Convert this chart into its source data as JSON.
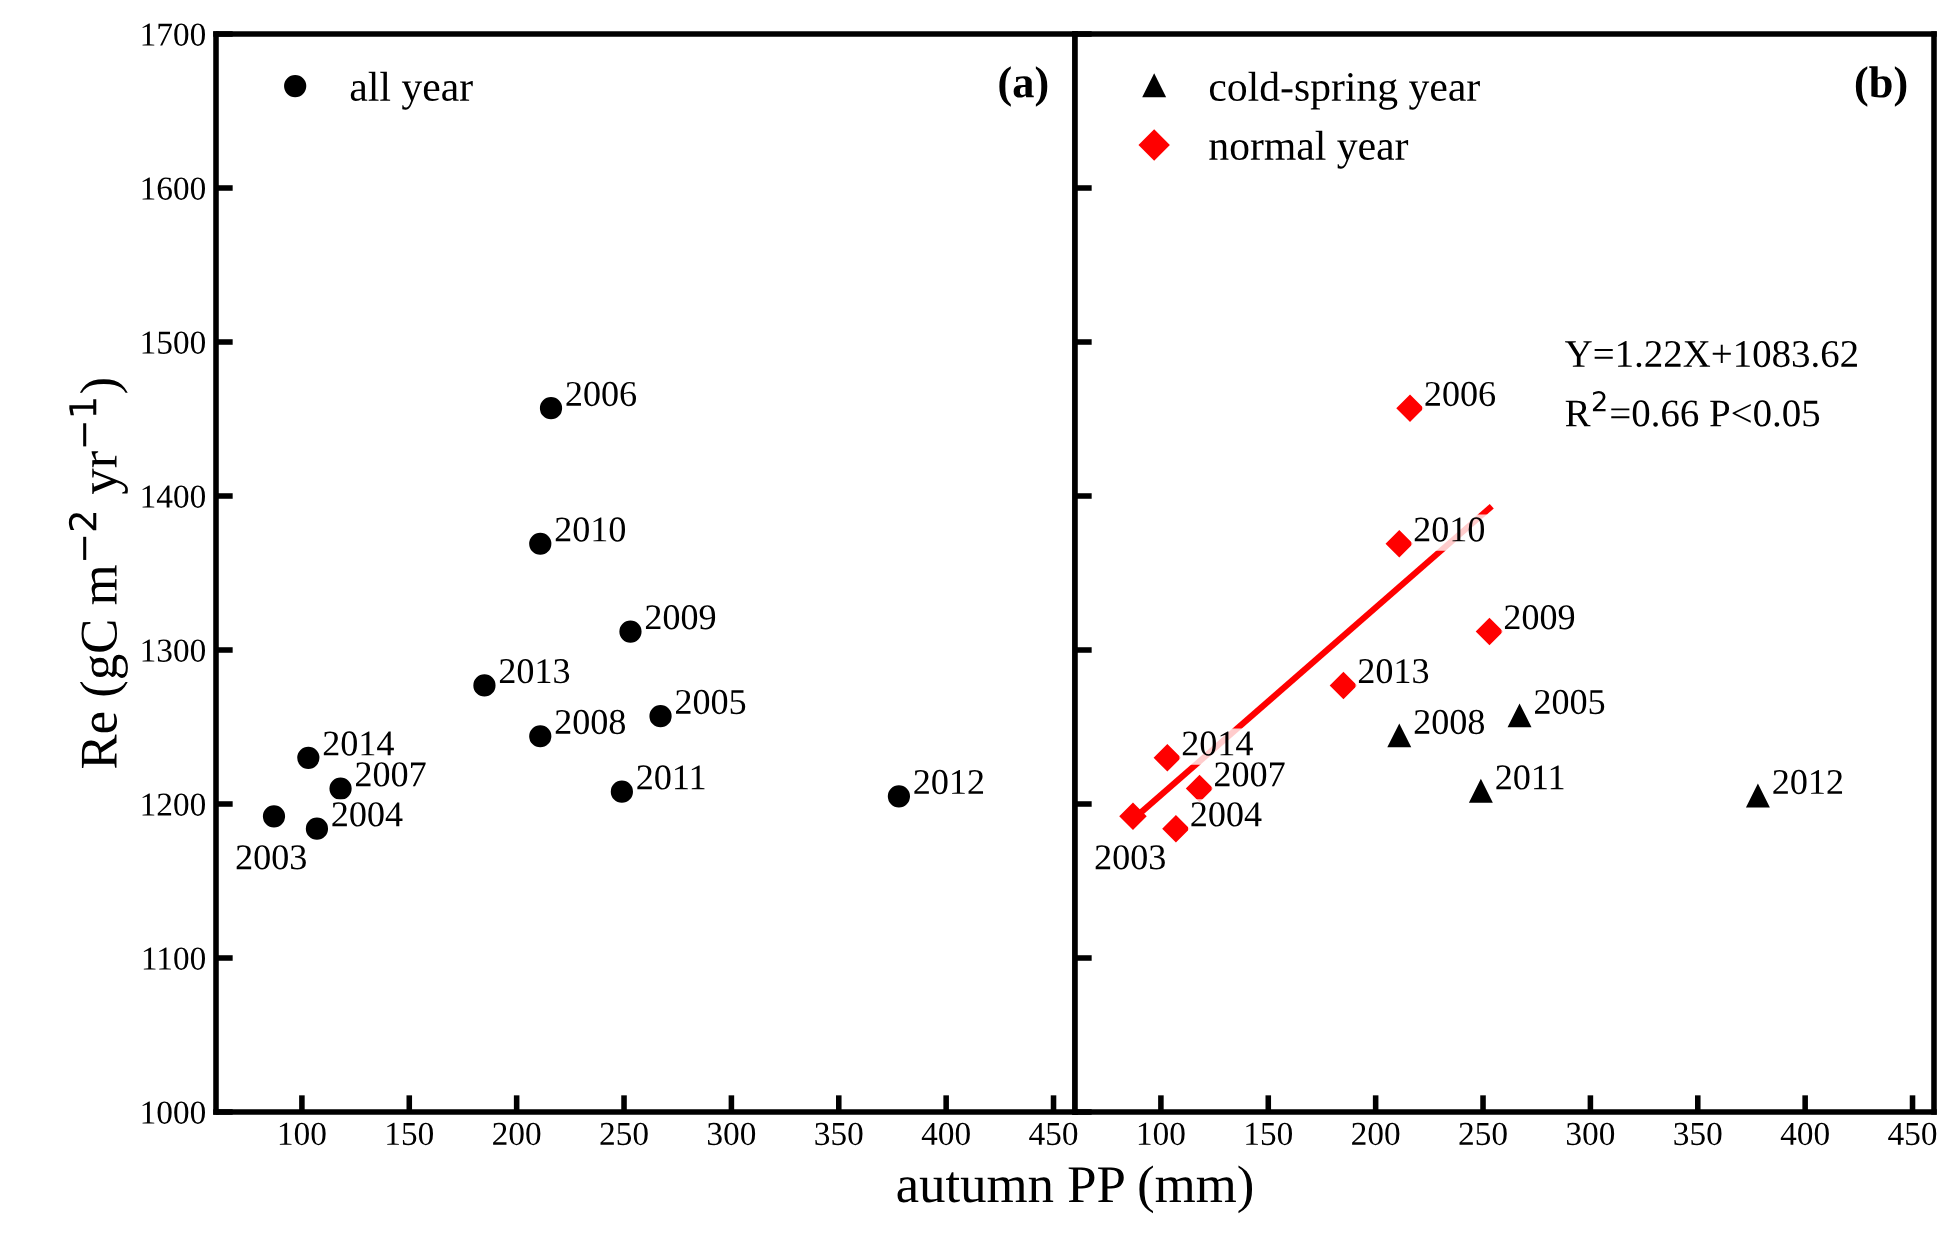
{
  "chart_data": [
    {
      "type": "scatter",
      "ylabel": "Re (gC m$^{−2}$ yr$^{−1}$)",
      "xlabel": "autumn PP (mm)",
      "xlim": [
        60,
        460
      ],
      "xticks": [
        100,
        150,
        200,
        250,
        300,
        350,
        400,
        450
      ],
      "ylim": [
        1000,
        1700
      ],
      "yticks": [
        1000,
        1100,
        1200,
        1300,
        1400,
        1500,
        1600,
        1700
      ],
      "grid": false,
      "legend": "top left",
      "series": [
        {
          "name": "all year",
          "color": "#000000",
          "marker": "circle",
          "x": [
            87,
            107,
            103,
            118,
            185,
            211,
            211,
            216,
            253,
            267,
            249,
            378
          ],
          "values": [
            1192,
            1184,
            1230,
            1210,
            1277,
            1244,
            1369,
            1457,
            1312,
            1257,
            1208,
            1205
          ]
        }
      ],
      "annotations": [
        "(a)",
        {
          "text": "2003",
          "x": 87,
          "y": 1192
        },
        {
          "text": "2004",
          "x": 107,
          "y": 1184
        },
        {
          "text": "2014",
          "x": 103,
          "y": 1230
        },
        {
          "text": "2007",
          "x": 118,
          "y": 1210
        },
        {
          "text": "2013",
          "x": 185,
          "y": 1277
        },
        {
          "text": "2008",
          "x": 211,
          "y": 1244
        },
        {
          "text": "2010",
          "x": 211,
          "y": 1369
        },
        {
          "text": "2006",
          "x": 216,
          "y": 1457
        },
        {
          "text": "2009",
          "x": 253,
          "y": 1312
        },
        {
          "text": "2005",
          "x": 267,
          "y": 1257
        },
        {
          "text": "2011",
          "x": 249,
          "y": 1208
        },
        {
          "text": "2012",
          "x": 378,
          "y": 1205
        }
      ]
    },
    {
      "type": "scatter",
      "xlim": [
        60,
        460
      ],
      "xticks": [
        100,
        150,
        200,
        250,
        300,
        350,
        400,
        450
      ],
      "ylim": [
        1000,
        1700
      ],
      "yticks": [
        1000,
        1100,
        1200,
        1300,
        1400,
        1500,
        1600,
        1700
      ],
      "grid": false,
      "legend": "top left",
      "tick_labels": "x",
      "series": [
        {
          "name": "cold-spring year",
          "color": "#000000",
          "marker": "triangle",
          "x": [
            211,
            267,
            249,
            378
          ],
          "values": [
            1244,
            1257,
            1208,
            1205
          ]
        },
        {
          "name": "normal year",
          "color": "#ff0000",
          "marker": "diamond",
          "x": [
            87,
            107,
            103,
            118,
            185,
            211,
            216,
            253
          ],
          "values": [
            1192,
            1184,
            1230,
            1210,
            1277,
            1369,
            1457,
            1312
          ]
        },
        {
          "type": "line",
          "color": "#ff0000",
          "marker": "none",
          "line_style": "solid",
          "x": [
            87,
            253
          ],
          "values": [
            1190,
            1392
          ]
        }
      ],
      "annotations": [
        "(b)",
        "Y=1.22X+1083.62",
        "R$^{2}$=0.66 P<0.05",
        {
          "text": "2003",
          "x": 87,
          "y": 1192
        },
        {
          "text": "2004",
          "x": 107,
          "y": 1184
        },
        {
          "text": "2014",
          "x": 103,
          "y": 1230
        },
        {
          "text": "2007",
          "x": 118,
          "y": 1210
        },
        {
          "text": "2013",
          "x": 185,
          "y": 1277
        },
        {
          "text": "2008",
          "x": 211,
          "y": 1244
        },
        {
          "text": "2010",
          "x": 211,
          "y": 1369
        },
        {
          "text": "2006",
          "x": 216,
          "y": 1457
        },
        {
          "text": "2009",
          "x": 253,
          "y": 1312
        },
        {
          "text": "2005",
          "x": 267,
          "y": 1257
        },
        {
          "text": "2011",
          "x": 249,
          "y": 1208
        },
        {
          "text": "2012",
          "x": 378,
          "y": 1205
        }
      ]
    }
  ]
}
